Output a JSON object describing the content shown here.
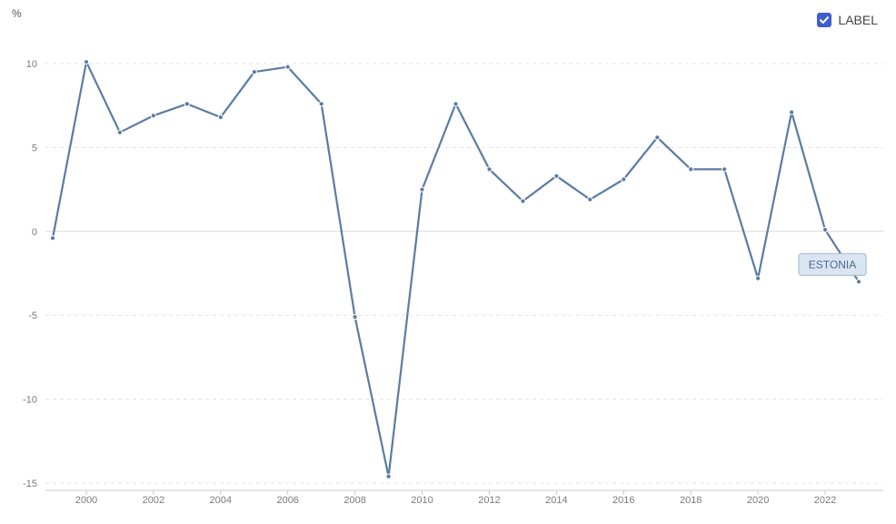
{
  "legend": {
    "checkbox_label": "LABEL",
    "checked": true,
    "accent_color": "#3f5fcf"
  },
  "chart_data": {
    "type": "line",
    "title": "",
    "xlabel": "",
    "ylabel": "%",
    "xlim": [
      1999,
      2023
    ],
    "ylim": [
      -15,
      10
    ],
    "yticks": [
      10,
      5,
      0,
      -5,
      -10,
      -15
    ],
    "xticks": [
      2000,
      2002,
      2004,
      2006,
      2008,
      2010,
      2012,
      2014,
      2016,
      2018,
      2020,
      2022
    ],
    "grid": true,
    "series": [
      {
        "name": "ESTONIA",
        "color": "#5a7ca3",
        "x": [
          1999,
          2000,
          2001,
          2002,
          2003,
          2004,
          2005,
          2006,
          2007,
          2008,
          2009,
          2010,
          2011,
          2012,
          2013,
          2014,
          2015,
          2016,
          2017,
          2018,
          2019,
          2020,
          2021,
          2022,
          2023
        ],
        "y": [
          -0.4,
          10.1,
          5.9,
          6.9,
          7.6,
          6.8,
          9.5,
          9.8,
          7.6,
          -5.1,
          -14.6,
          2.5,
          7.6,
          3.7,
          1.8,
          3.3,
          1.9,
          3.1,
          5.6,
          3.7,
          3.7,
          -2.8,
          7.1,
          0.1,
          -3.0
        ]
      }
    ]
  }
}
